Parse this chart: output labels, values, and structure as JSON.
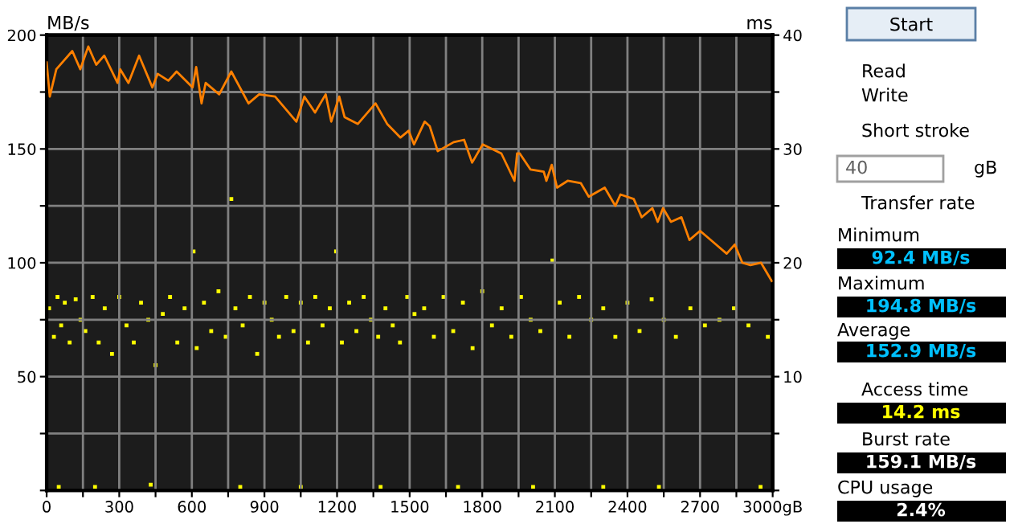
{
  "chart_data": [
    {
      "type": "line",
      "ylabel": "MB/s",
      "y2label": "ms",
      "grid": true,
      "xlim": [
        0,
        3000
      ],
      "xticks": [
        0,
        {
          "value": 150,
          "label": null
        },
        300,
        {
          "value": 450,
          "label": null
        },
        600,
        {
          "value": 750,
          "label": null
        },
        900,
        {
          "value": 1050,
          "label": null
        },
        1200,
        {
          "value": 1350,
          "label": null
        },
        1500,
        {
          "value": 1650,
          "label": null
        },
        1800,
        {
          "value": 1950,
          "label": null
        },
        2100,
        {
          "value": 2250,
          "label": null
        },
        2400,
        {
          "value": 2550,
          "label": null
        },
        2700,
        {
          "value": 2850,
          "label": null
        },
        {
          "value": 3000,
          "label": "3000gB"
        }
      ],
      "ylim": [
        0,
        200
      ],
      "yticks": [
        {
          "value": 0,
          "label": null
        },
        {
          "value": 25,
          "label": null
        },
        50,
        {
          "value": 75,
          "label": null
        },
        100,
        {
          "value": 125,
          "label": null
        },
        150,
        {
          "value": 175,
          "label": null
        },
        200
      ],
      "y2lim": [
        0,
        40
      ],
      "y2ticks": [
        {
          "value": 0,
          "label": null
        },
        {
          "value": 5,
          "label": null
        },
        10,
        {
          "value": 15,
          "label": null
        },
        20,
        {
          "value": 25,
          "label": null
        },
        30,
        {
          "value": 35,
          "label": null
        },
        40
      ],
      "series": [
        {
          "type": "line",
          "color": "#ff8000",
          "marker": "none",
          "line_style": "solid",
          "x": [
            0,
            13,
            40,
            106,
            139,
            172,
            205,
            238,
            293,
            304,
            338,
            382,
            437,
            459,
            503,
            537,
            603,
            618,
            640,
            657,
            713,
            763,
            834,
            878,
            944,
            1032,
            1065,
            1109,
            1153,
            1176,
            1209,
            1231,
            1286,
            1359,
            1407,
            1462,
            1496,
            1518,
            1562,
            1583,
            1616,
            1682,
            1725,
            1758,
            1802,
            1879,
            1933,
            1944,
            1955,
            1999,
            2054,
            2065,
            2087,
            2109,
            2153,
            2207,
            2240,
            2306,
            2350,
            2371,
            2426,
            2459,
            2503,
            2525,
            2547,
            2580,
            2623,
            2656,
            2700,
            2733,
            2766,
            2810,
            2843,
            2875,
            2908,
            2952,
            2996
          ],
          "values": [
            188,
            173,
            185,
            193,
            185,
            195,
            187,
            191,
            179,
            185,
            179,
            191,
            177,
            183,
            180,
            184,
            177,
            186,
            170,
            179,
            174,
            184,
            170,
            174,
            173,
            162,
            173,
            166,
            174,
            162,
            173,
            164,
            161,
            170,
            161,
            155,
            158,
            152,
            162,
            160,
            149,
            153,
            154,
            144,
            152,
            148,
            136,
            148,
            148,
            141,
            140,
            136,
            143,
            133,
            136,
            135,
            129,
            133,
            125,
            130,
            128,
            120,
            124,
            118,
            124,
            118,
            120,
            110,
            114,
            111,
            108,
            104,
            108,
            100,
            99,
            100,
            92
          ]
        },
        {
          "type": "scatter",
          "axis": "y2",
          "color": "#ffff00",
          "marker": "square",
          "x": [
            10,
            30,
            45,
            60,
            75,
            95,
            120,
            140,
            160,
            190,
            215,
            240,
            270,
            300,
            330,
            360,
            390,
            420,
            450,
            480,
            510,
            540,
            570,
            607,
            620,
            650,
            680,
            710,
            740,
            763,
            780,
            810,
            840,
            870,
            900,
            930,
            960,
            990,
            1020,
            1050,
            1080,
            1110,
            1140,
            1170,
            1196,
            1220,
            1250,
            1280,
            1310,
            1340,
            1370,
            1400,
            1430,
            1460,
            1490,
            1520,
            1560,
            1600,
            1640,
            1680,
            1720,
            1760,
            1800,
            1840,
            1880,
            1920,
            1960,
            2000,
            2040,
            2090,
            2120,
            2160,
            2200,
            2250,
            2300,
            2350,
            2400,
            2450,
            2500,
            2550,
            2600,
            2660,
            2720,
            2780,
            2840,
            2900,
            2980,
            50,
            200,
            430,
            800,
            1050,
            1380,
            1700,
            2010,
            2300,
            2530,
            2950
          ],
          "values": [
            16,
            13.5,
            17,
            14.5,
            16.5,
            13,
            16.8,
            15,
            14,
            17,
            13,
            16,
            12,
            17,
            14.5,
            13,
            16.5,
            15,
            11,
            15.5,
            17,
            13,
            16,
            21,
            12.5,
            16.5,
            14,
            17.5,
            13.5,
            25.6,
            16,
            14.5,
            17,
            12,
            16.5,
            15,
            13.5,
            17,
            14,
            16.5,
            13,
            17,
            14.5,
            16,
            21,
            13,
            16.5,
            14,
            17,
            15,
            13.5,
            16,
            14.5,
            13,
            17,
            15.5,
            16,
            13.5,
            17,
            14,
            16.5,
            12.5,
            17.5,
            14.5,
            16,
            13.5,
            17,
            15,
            14,
            20.2,
            16.5,
            13.5,
            17,
            15,
            16,
            13.5,
            16.5,
            14,
            16.8,
            15,
            13.5,
            16,
            14.5,
            15,
            16,
            14.5,
            13.5,
            0.3,
            0.3,
            0.5,
            0.3,
            0.3,
            0.3,
            0.3,
            0.3,
            0.3,
            0.3,
            0.3
          ]
        }
      ]
    },
    {
      "type": "other",
      "annotations": [
        "Start",
        "Read",
        "Write",
        "Short stroke",
        "40",
        "gB",
        "Transfer rate",
        "Minimum",
        "92.4 MB/s",
        "Maximum",
        "194.8 MB/s",
        "Average",
        "152.9 MB/s",
        "Access time",
        "14.2 ms",
        "Burst rate",
        "159.1 MB/s",
        "CPU usage",
        "2.4%"
      ]
    }
  ]
}
